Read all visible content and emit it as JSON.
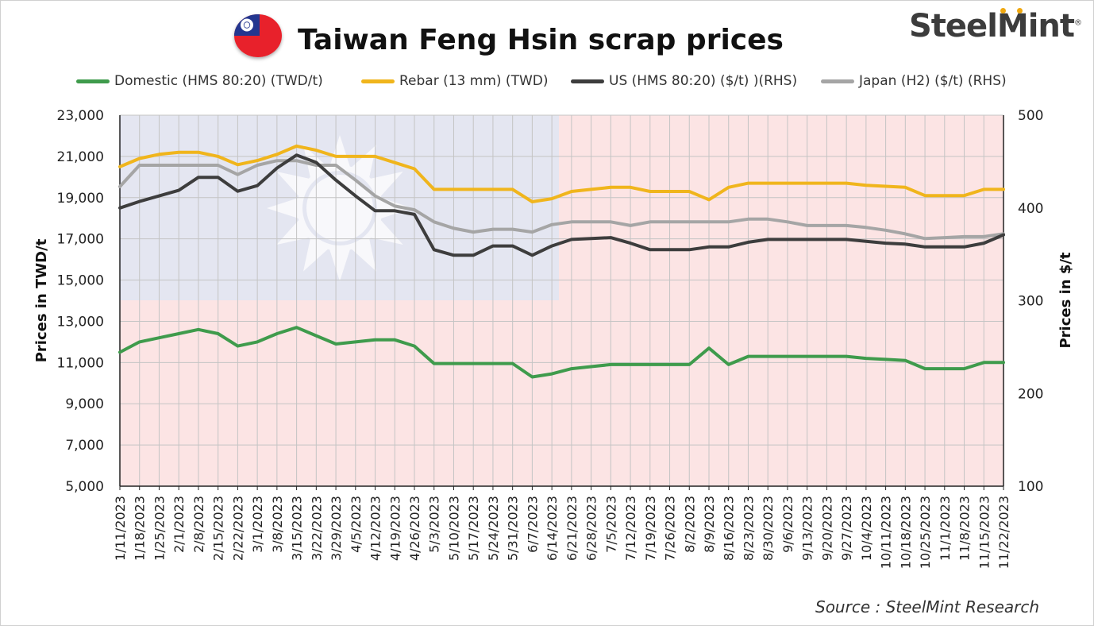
{
  "header": {
    "title": "Taiwan Feng Hsin scrap prices",
    "brand": "SteelMint",
    "brand_mark": "®",
    "source": "Source : SteelMint Research"
  },
  "colors": {
    "domestic": "#3f9b4c",
    "rebar": "#f0b51c",
    "us": "#3d3d3d",
    "japan": "#a5a5a5",
    "flag_red": "#fce4e4",
    "flag_blue": "#e4e6f1"
  },
  "chart_data": {
    "type": "line",
    "title": "Taiwan Feng Hsin scrap prices",
    "ylabel": "Prices in TWD/t",
    "y2label": "Prices in $/t",
    "ylim": [
      5000,
      23000
    ],
    "y2lim": [
      100,
      500
    ],
    "yticks": [
      "5,000",
      "7,000",
      "9,000",
      "11,000",
      "13,000",
      "15,000",
      "17,000",
      "19,000",
      "21,000",
      "23,000"
    ],
    "y2ticks": [
      "100",
      "200",
      "300",
      "400",
      "500"
    ],
    "grid": true,
    "legend_position": "top",
    "x": [
      "1/11/2023",
      "1/18/2023",
      "1/25/2023",
      "2/1/2023",
      "2/8/2023",
      "2/15/2023",
      "2/22/2023",
      "3/1/2023",
      "3/8/2023",
      "3/15/2023",
      "3/22/2023",
      "3/29/2023",
      "4/5/2023",
      "4/12/2023",
      "4/19/2023",
      "4/26/2023",
      "5/3/2023",
      "5/10/2023",
      "5/17/2023",
      "5/24/2023",
      "5/31/2023",
      "6/7/2023",
      "6/14/2023",
      "6/21/2023",
      "6/28/2023",
      "7/5/2023",
      "7/12/2023",
      "7/19/2023",
      "7/26/2023",
      "8/2/2023",
      "8/9/2023",
      "8/16/2023",
      "8/23/2023",
      "8/30/2023",
      "9/6/2023",
      "9/13/2023",
      "9/20/2023",
      "9/27/2023",
      "10/4/2023",
      "10/11/2023",
      "10/18/2023",
      "10/25/2023",
      "11/1/2023",
      "11/8/2023",
      "11/15/2023",
      "11/22/2023"
    ],
    "series": [
      {
        "name": "Domestic (HMS 80:20) (TWD/t)",
        "axis": "left",
        "color": "#3f9b4c",
        "values": [
          11500,
          12000,
          12200,
          12400,
          12600,
          12400,
          11800,
          12000,
          12400,
          12700,
          12300,
          11900,
          12000,
          12100,
          12100,
          11800,
          10950,
          10950,
          10950,
          10950,
          10950,
          10300,
          10450,
          10700,
          10800,
          10900,
          10900,
          10900,
          10900,
          10900,
          11700,
          10900,
          11300,
          11300,
          11300,
          11300,
          11300,
          11300,
          11200,
          11150,
          11100,
          10700,
          10700,
          10700,
          11000,
          11000
        ]
      },
      {
        "name": "Rebar (13 mm) (TWD)",
        "axis": "left",
        "color": "#f0b51c",
        "values": [
          20500,
          20900,
          21100,
          21200,
          21200,
          21000,
          20600,
          20800,
          21100,
          21500,
          21300,
          21000,
          21000,
          21000,
          20700,
          20400,
          19400,
          19400,
          19400,
          19400,
          19400,
          18800,
          18950,
          19300,
          19400,
          19500,
          19500,
          19300,
          19300,
          19300,
          18900,
          19500,
          19700,
          19700,
          19700,
          19700,
          19700,
          19700,
          19600,
          19550,
          19500,
          19100,
          19100,
          19100,
          19400,
          19400
        ]
      },
      {
        "name": "US (HMS 80:20) ($/t) )(RHS)",
        "axis": "right",
        "color": "#3d3d3d",
        "values": [
          400,
          407,
          413,
          419,
          433,
          433,
          418,
          424,
          443,
          457,
          449,
          430,
          413,
          397,
          397,
          393,
          355,
          349,
          349,
          359,
          359,
          349,
          359,
          366,
          367,
          368,
          362,
          355,
          355,
          355,
          358,
          358,
          363,
          366,
          366,
          366,
          366,
          366,
          364,
          362,
          361,
          358,
          358,
          358,
          362,
          371
        ]
      },
      {
        "name": "Japan (H2) ($/t) (RHS)",
        "axis": "right",
        "color": "#a5a5a5",
        "values": [
          423,
          446,
          446,
          446,
          446,
          446,
          436,
          446,
          451,
          451,
          446,
          446,
          430,
          413,
          402,
          398,
          385,
          378,
          374,
          377,
          377,
          374,
          382,
          385,
          385,
          385,
          381,
          385,
          385,
          385,
          385,
          385,
          388,
          388,
          385,
          381,
          381,
          381,
          379,
          376,
          372,
          367,
          368,
          369,
          369,
          372
        ]
      }
    ]
  }
}
